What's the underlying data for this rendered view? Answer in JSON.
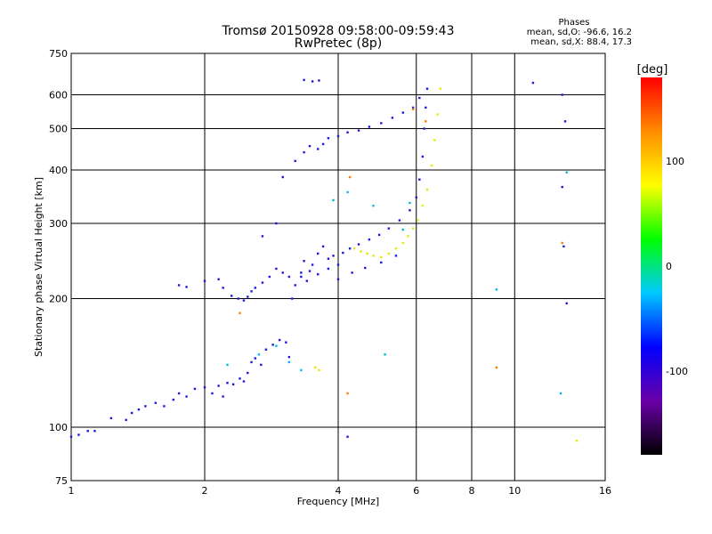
{
  "chart_data": {
    "type": "scatter",
    "title": "Tromsø 20150928 09:58:00-09:59:43",
    "subtitle": "RwPretec (8p)",
    "xlabel": "Frequency [MHz]",
    "ylabel": "Stationary phase Virtual Height [km]",
    "x_scale": "log",
    "y_scale": "log",
    "xlim": [
      1,
      16
    ],
    "ylim": [
      75,
      750
    ],
    "x_ticks": [
      1,
      2,
      4,
      6,
      8,
      10,
      16
    ],
    "y_ticks": [
      75,
      100,
      200,
      300,
      400,
      500,
      600,
      750
    ],
    "grid_x": [
      2,
      4,
      6,
      8,
      10
    ],
    "grid_y": [
      100,
      200,
      300,
      400,
      500,
      600
    ],
    "phase_stats": {
      "heading": "Phases",
      "o_line": "mean, sd,O: -96.6, 16.2",
      "x_line": "mean, sd,X: 88.4, 17.3"
    },
    "colorbar": {
      "label": "[deg]",
      "range": [
        -180,
        180
      ],
      "ticks": [
        100,
        0,
        -100
      ],
      "colors": [
        "#000000",
        "#6a00a8",
        "#0000ff",
        "#00c8ff",
        "#00ff00",
        "#ffff00",
        "#ff8c00",
        "#ff0000"
      ]
    },
    "series": [
      {
        "mode": "O",
        "phase_deg": -100,
        "color": "#1a1ae0",
        "points": [
          [
            1.0,
            95
          ],
          [
            1.04,
            96
          ],
          [
            1.09,
            98
          ],
          [
            1.13,
            98
          ],
          [
            1.23,
            105
          ],
          [
            1.33,
            104
          ],
          [
            1.37,
            108
          ],
          [
            1.42,
            110
          ],
          [
            1.47,
            112
          ],
          [
            1.55,
            114
          ],
          [
            1.62,
            112
          ],
          [
            1.7,
            116
          ],
          [
            1.75,
            120
          ],
          [
            1.82,
            118
          ],
          [
            1.9,
            123
          ],
          [
            2.0,
            124
          ],
          [
            2.08,
            120
          ],
          [
            2.15,
            125
          ],
          [
            2.2,
            118
          ],
          [
            2.25,
            127
          ],
          [
            2.32,
            126
          ],
          [
            2.4,
            130
          ],
          [
            2.45,
            128
          ],
          [
            2.5,
            134
          ],
          [
            2.55,
            142
          ],
          [
            2.6,
            145
          ],
          [
            2.68,
            140
          ],
          [
            2.75,
            152
          ],
          [
            2.85,
            156
          ],
          [
            2.95,
            160
          ],
          [
            3.05,
            158
          ],
          [
            3.1,
            146
          ],
          [
            1.75,
            215
          ],
          [
            1.82,
            213
          ],
          [
            2.0,
            220
          ],
          [
            2.15,
            222
          ],
          [
            2.2,
            212
          ],
          [
            2.3,
            203
          ],
          [
            2.38,
            200
          ],
          [
            2.45,
            198
          ],
          [
            2.5,
            202
          ],
          [
            2.55,
            208
          ],
          [
            2.6,
            212
          ],
          [
            2.7,
            218
          ],
          [
            2.8,
            225
          ],
          [
            2.9,
            235
          ],
          [
            3.0,
            230
          ],
          [
            3.1,
            225
          ],
          [
            3.15,
            200
          ],
          [
            3.2,
            215
          ],
          [
            3.3,
            230
          ],
          [
            3.35,
            245
          ],
          [
            3.4,
            220
          ],
          [
            3.5,
            240
          ],
          [
            3.6,
            255
          ],
          [
            3.7,
            265
          ],
          [
            3.8,
            248
          ],
          [
            3.9,
            252
          ],
          [
            4.0,
            240
          ],
          [
            4.1,
            256
          ],
          [
            4.25,
            262
          ],
          [
            4.45,
            268
          ],
          [
            4.7,
            275
          ],
          [
            4.95,
            282
          ],
          [
            5.2,
            292
          ],
          [
            5.5,
            305
          ],
          [
            5.8,
            322
          ],
          [
            6.0,
            345
          ],
          [
            6.1,
            380
          ],
          [
            6.2,
            430
          ],
          [
            6.25,
            500
          ],
          [
            6.3,
            560
          ],
          [
            6.35,
            620
          ],
          [
            3.3,
            225
          ],
          [
            3.45,
            232
          ],
          [
            3.6,
            228
          ],
          [
            3.8,
            235
          ],
          [
            4.0,
            222
          ],
          [
            4.3,
            230
          ],
          [
            4.6,
            236
          ],
          [
            5.0,
            243
          ],
          [
            5.4,
            252
          ],
          [
            3.0,
            385
          ],
          [
            3.2,
            420
          ],
          [
            3.35,
            440
          ],
          [
            3.45,
            455
          ],
          [
            3.6,
            448
          ],
          [
            3.7,
            460
          ],
          [
            3.8,
            475
          ],
          [
            4.0,
            480
          ],
          [
            4.2,
            490
          ],
          [
            4.45,
            495
          ],
          [
            4.7,
            505
          ],
          [
            5.0,
            515
          ],
          [
            5.3,
            530
          ],
          [
            5.6,
            545
          ],
          [
            5.9,
            560
          ],
          [
            6.1,
            590
          ],
          [
            3.35,
            650
          ],
          [
            3.5,
            645
          ],
          [
            3.62,
            648
          ],
          [
            2.9,
            300
          ],
          [
            2.7,
            280
          ],
          [
            11.0,
            640
          ],
          [
            12.8,
            600
          ],
          [
            12.8,
            365
          ],
          [
            13.1,
            195
          ],
          [
            13.0,
            520
          ],
          [
            4.2,
            95
          ],
          [
            12.9,
            265
          ]
        ]
      },
      {
        "mode": "O (cyan)",
        "phase_deg": -40,
        "color": "#00b8e8",
        "points": [
          [
            2.65,
            148
          ],
          [
            2.9,
            155
          ],
          [
            3.1,
            142
          ],
          [
            3.3,
            136
          ],
          [
            5.1,
            148
          ],
          [
            2.25,
            140
          ],
          [
            3.9,
            340
          ],
          [
            4.2,
            355
          ],
          [
            4.8,
            330
          ],
          [
            5.6,
            290
          ],
          [
            5.8,
            335
          ],
          [
            9.1,
            210
          ],
          [
            12.7,
            120
          ],
          [
            13.1,
            395
          ]
        ]
      },
      {
        "mode": "X",
        "phase_deg": 90,
        "color": "#e8e800",
        "points": [
          [
            4.35,
            262
          ],
          [
            4.5,
            258
          ],
          [
            4.65,
            255
          ],
          [
            4.8,
            252
          ],
          [
            5.0,
            250
          ],
          [
            5.2,
            255
          ],
          [
            5.4,
            262
          ],
          [
            5.6,
            270
          ],
          [
            5.75,
            280
          ],
          [
            5.9,
            292
          ],
          [
            6.05,
            305
          ],
          [
            6.2,
            330
          ],
          [
            6.35,
            360
          ],
          [
            6.5,
            410
          ],
          [
            6.6,
            470
          ],
          [
            6.7,
            540
          ],
          [
            6.8,
            620
          ],
          [
            3.55,
            138
          ],
          [
            3.62,
            136
          ],
          [
            13.8,
            93
          ]
        ]
      },
      {
        "mode": "X (orange)",
        "phase_deg": 150,
        "color": "#ff7a00",
        "points": [
          [
            4.2,
            120
          ],
          [
            9.1,
            138
          ],
          [
            12.8,
            270
          ],
          [
            6.3,
            520
          ],
          [
            5.9,
            555
          ],
          [
            4.25,
            385
          ],
          [
            2.4,
            185
          ]
        ]
      }
    ]
  }
}
